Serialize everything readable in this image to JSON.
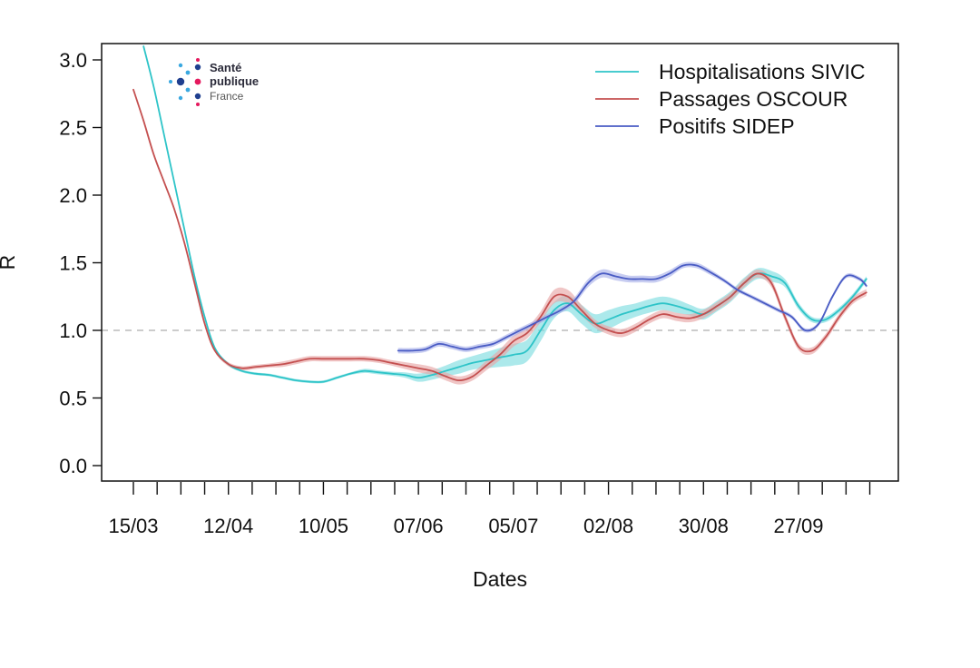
{
  "chart_data": {
    "type": "line",
    "title": "",
    "xlabel": "Dates",
    "ylabel": "R",
    "ylim": [
      0.0,
      3.1
    ],
    "xlim_days": [
      -3,
      218
    ],
    "yticks": [
      0.0,
      0.5,
      1.0,
      1.5,
      2.0,
      2.5,
      3.0
    ],
    "ytick_labels": [
      "0.0",
      "0.5",
      "1.0",
      "1.5",
      "2.0",
      "2.5",
      "3.0"
    ],
    "xticks_minor_days": [
      0,
      7,
      14,
      21,
      28,
      35,
      42,
      49,
      56,
      63,
      70,
      77,
      84,
      91,
      98,
      105,
      112,
      119,
      126,
      133,
      140,
      147,
      154,
      161,
      168,
      175,
      182,
      189,
      196,
      203,
      210,
      217
    ],
    "xtick_labels": [
      {
        "day": 0,
        "label": "15/03"
      },
      {
        "day": 28,
        "label": "12/04"
      },
      {
        "day": 56,
        "label": "10/05"
      },
      {
        "day": 84,
        "label": "07/06"
      },
      {
        "day": 112,
        "label": "05/07"
      },
      {
        "day": 140,
        "label": "02/08"
      },
      {
        "day": 168,
        "label": "30/08"
      },
      {
        "day": 196,
        "label": "27/09"
      }
    ],
    "reference_line": {
      "y": 1.0,
      "style": "dashed",
      "color": "#bbbbbb"
    },
    "legend_position": "top-right",
    "series": [
      {
        "name": "Hospitalisations SIVIC",
        "color": "#2ec4c8",
        "band_color": "#7fdde0",
        "x": [
          3,
          6,
          9,
          12,
          15,
          18,
          21,
          24,
          28,
          32,
          36,
          40,
          44,
          48,
          52,
          56,
          60,
          64,
          68,
          72,
          76,
          80,
          84,
          88,
          92,
          96,
          100,
          104,
          108,
          112,
          116,
          120,
          124,
          128,
          132,
          136,
          140,
          144,
          148,
          152,
          156,
          160,
          164,
          168,
          172,
          176,
          180,
          184,
          188,
          192,
          196,
          200,
          204,
          208,
          212,
          216
        ],
        "y": [
          3.1,
          2.8,
          2.45,
          2.1,
          1.75,
          1.4,
          1.1,
          0.87,
          0.75,
          0.7,
          0.68,
          0.67,
          0.65,
          0.63,
          0.62,
          0.62,
          0.65,
          0.68,
          0.7,
          0.69,
          0.68,
          0.67,
          0.65,
          0.67,
          0.7,
          0.73,
          0.76,
          0.78,
          0.8,
          0.82,
          0.85,
          1.0,
          1.15,
          1.2,
          1.12,
          1.05,
          1.08,
          1.12,
          1.15,
          1.18,
          1.2,
          1.18,
          1.15,
          1.12,
          1.18,
          1.25,
          1.35,
          1.42,
          1.4,
          1.35,
          1.18,
          1.08,
          1.08,
          1.15,
          1.25,
          1.38
        ],
        "band": [
          0.01,
          0.01,
          0.01,
          0.01,
          0.01,
          0.01,
          0.01,
          0.01,
          0.01,
          0.01,
          0.01,
          0.01,
          0.01,
          0.01,
          0.01,
          0.01,
          0.01,
          0.01,
          0.015,
          0.015,
          0.015,
          0.02,
          0.03,
          0.035,
          0.04,
          0.05,
          0.05,
          0.06,
          0.07,
          0.08,
          0.08,
          0.08,
          0.06,
          0.06,
          0.07,
          0.07,
          0.07,
          0.06,
          0.05,
          0.05,
          0.05,
          0.05,
          0.04,
          0.04,
          0.04,
          0.04,
          0.04,
          0.04,
          0.04,
          0.03,
          0.025,
          0.02,
          0.02,
          0.02,
          0.02,
          0.02
        ]
      },
      {
        "name": "Passages OSCOUR",
        "color": "#c45050",
        "band_color": "#e8a8a8",
        "x": [
          0,
          3,
          6,
          9,
          12,
          15,
          18,
          21,
          24,
          28,
          32,
          36,
          40,
          44,
          48,
          52,
          56,
          60,
          64,
          68,
          72,
          76,
          80,
          84,
          88,
          92,
          96,
          100,
          104,
          108,
          112,
          116,
          120,
          124,
          128,
          132,
          136,
          140,
          144,
          148,
          152,
          156,
          160,
          164,
          168,
          172,
          176,
          180,
          184,
          188,
          192,
          196,
          200,
          204,
          208,
          212,
          216
        ],
        "y": [
          2.78,
          2.55,
          2.3,
          2.1,
          1.9,
          1.65,
          1.35,
          1.05,
          0.85,
          0.75,
          0.72,
          0.73,
          0.74,
          0.75,
          0.77,
          0.79,
          0.79,
          0.79,
          0.79,
          0.79,
          0.78,
          0.76,
          0.74,
          0.72,
          0.7,
          0.66,
          0.63,
          0.66,
          0.74,
          0.82,
          0.92,
          0.98,
          1.1,
          1.25,
          1.25,
          1.15,
          1.05,
          1.0,
          0.98,
          1.02,
          1.08,
          1.12,
          1.1,
          1.09,
          1.12,
          1.18,
          1.25,
          1.35,
          1.42,
          1.35,
          1.1,
          0.88,
          0.85,
          0.95,
          1.1,
          1.22,
          1.28
        ],
        "band": [
          0.01,
          0.01,
          0.01,
          0.01,
          0.01,
          0.01,
          0.01,
          0.01,
          0.01,
          0.015,
          0.015,
          0.015,
          0.015,
          0.02,
          0.02,
          0.02,
          0.02,
          0.02,
          0.02,
          0.02,
          0.02,
          0.02,
          0.025,
          0.03,
          0.03,
          0.03,
          0.03,
          0.03,
          0.035,
          0.04,
          0.04,
          0.04,
          0.04,
          0.05,
          0.05,
          0.04,
          0.03,
          0.03,
          0.03,
          0.03,
          0.03,
          0.03,
          0.03,
          0.03,
          0.03,
          0.03,
          0.03,
          0.03,
          0.03,
          0.03,
          0.03,
          0.025,
          0.025,
          0.025,
          0.025,
          0.025,
          0.025
        ]
      },
      {
        "name": "Positifs SIDEP",
        "color": "#4a5cc4",
        "band_color": "#aab2ea",
        "x": [
          78,
          82,
          86,
          90,
          94,
          98,
          102,
          106,
          110,
          114,
          118,
          122,
          126,
          130,
          134,
          138,
          142,
          146,
          150,
          154,
          158,
          162,
          166,
          170,
          174,
          178,
          182,
          186,
          190,
          194,
          198,
          202,
          206,
          210,
          214,
          216
        ],
        "y": [
          0.85,
          0.85,
          0.86,
          0.9,
          0.88,
          0.86,
          0.88,
          0.9,
          0.95,
          1.0,
          1.05,
          1.1,
          1.15,
          1.22,
          1.35,
          1.42,
          1.4,
          1.38,
          1.38,
          1.38,
          1.42,
          1.48,
          1.48,
          1.43,
          1.37,
          1.3,
          1.25,
          1.2,
          1.15,
          1.1,
          1.0,
          1.05,
          1.25,
          1.4,
          1.38,
          1.33
        ],
        "band": [
          0.02,
          0.02,
          0.02,
          0.02,
          0.02,
          0.02,
          0.02,
          0.02,
          0.02,
          0.02,
          0.02,
          0.02,
          0.02,
          0.025,
          0.03,
          0.03,
          0.03,
          0.025,
          0.025,
          0.025,
          0.025,
          0.02,
          0.02,
          0.02,
          0.015,
          0.015,
          0.015,
          0.015,
          0.015,
          0.015,
          0.015,
          0.015,
          0.015,
          0.015,
          0.015,
          0.015
        ]
      }
    ]
  },
  "logo": {
    "line1": "Santé",
    "line2": "publique",
    "line3": "France"
  }
}
